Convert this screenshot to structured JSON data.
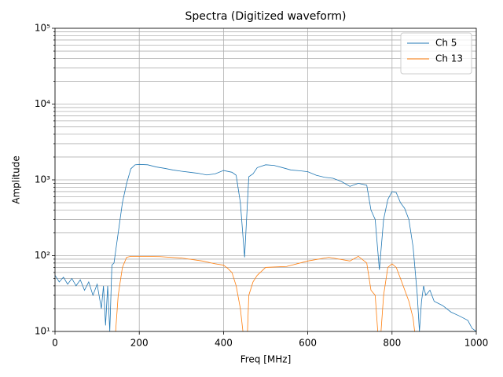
{
  "chart_data": {
    "type": "line",
    "title": "Spectra (Digitized waveform)",
    "xlabel": "Freq [MHz]",
    "ylabel": "Amplitude",
    "xlim": [
      0,
      1000
    ],
    "xticks": [
      0,
      200,
      400,
      600,
      800,
      1000
    ],
    "ylim": [
      10,
      100000
    ],
    "log_y": true,
    "grid": true,
    "legend": "upper right",
    "yticks": [
      {
        "value": 10,
        "label": "10¹"
      },
      {
        "value": 100,
        "label": "10²"
      },
      {
        "value": 1000,
        "label": "10³"
      },
      {
        "value": 10000,
        "label": "10⁴"
      },
      {
        "value": 100000,
        "label": "10⁵"
      }
    ],
    "yminorticks": [
      20,
      30,
      40,
      50,
      60,
      70,
      80,
      90,
      200,
      300,
      400,
      500,
      600,
      700,
      800,
      900,
      2000,
      3000,
      4000,
      5000,
      6000,
      7000,
      8000,
      9000,
      20000,
      30000,
      40000,
      50000,
      60000,
      70000,
      80000,
      90000
    ],
    "series": [
      {
        "name": "Ch 5",
        "color": "#1f77b4",
        "x": [
          0,
          10,
          20,
          30,
          40,
          50,
          60,
          70,
          80,
          90,
          100,
          110,
          115,
          120,
          125,
          130,
          135,
          140,
          150,
          160,
          170,
          180,
          190,
          200,
          220,
          240,
          260,
          280,
          300,
          320,
          340,
          360,
          380,
          400,
          420,
          430,
          440,
          450,
          460,
          470,
          480,
          500,
          520,
          540,
          560,
          580,
          600,
          620,
          640,
          660,
          680,
          700,
          720,
          740,
          750,
          760,
          770,
          780,
          790,
          800,
          810,
          820,
          830,
          840,
          850,
          860,
          865,
          870,
          875,
          880,
          890,
          900,
          920,
          940,
          960,
          980,
          990,
          1000
        ],
        "values": [
          55,
          45,
          52,
          42,
          50,
          40,
          48,
          35,
          45,
          30,
          42,
          20,
          40,
          12,
          40,
          10,
          75,
          80,
          200,
          500,
          900,
          1400,
          1580,
          1600,
          1580,
          1480,
          1420,
          1350,
          1300,
          1260,
          1220,
          1160,
          1200,
          1330,
          1260,
          1150,
          500,
          95,
          1100,
          1200,
          1450,
          1580,
          1550,
          1450,
          1350,
          1320,
          1280,
          1150,
          1080,
          1050,
          950,
          820,
          900,
          850,
          400,
          300,
          65,
          300,
          550,
          700,
          680,
          500,
          420,
          300,
          130,
          30,
          10,
          25,
          40,
          30,
          35,
          25,
          22,
          18,
          16,
          14,
          11,
          10
        ]
      },
      {
        "name": "Ch 13",
        "color": "#ff7f0e",
        "x": [
          140,
          150,
          160,
          170,
          180,
          200,
          250,
          300,
          350,
          380,
          400,
          410,
          420,
          430,
          440,
          448,
          455,
          460,
          470,
          480,
          500,
          550,
          600,
          650,
          700,
          720,
          740,
          750,
          760,
          770,
          780,
          790,
          800,
          810,
          820,
          840,
          850,
          860
        ],
        "values": [
          5,
          30,
          70,
          95,
          98,
          98,
          97,
          93,
          85,
          78,
          75,
          68,
          60,
          40,
          20,
          8,
          5,
          30,
          45,
          55,
          70,
          72,
          85,
          95,
          85,
          98,
          80,
          35,
          30,
          5,
          30,
          70,
          78,
          70,
          50,
          25,
          15,
          5
        ]
      }
    ]
  }
}
